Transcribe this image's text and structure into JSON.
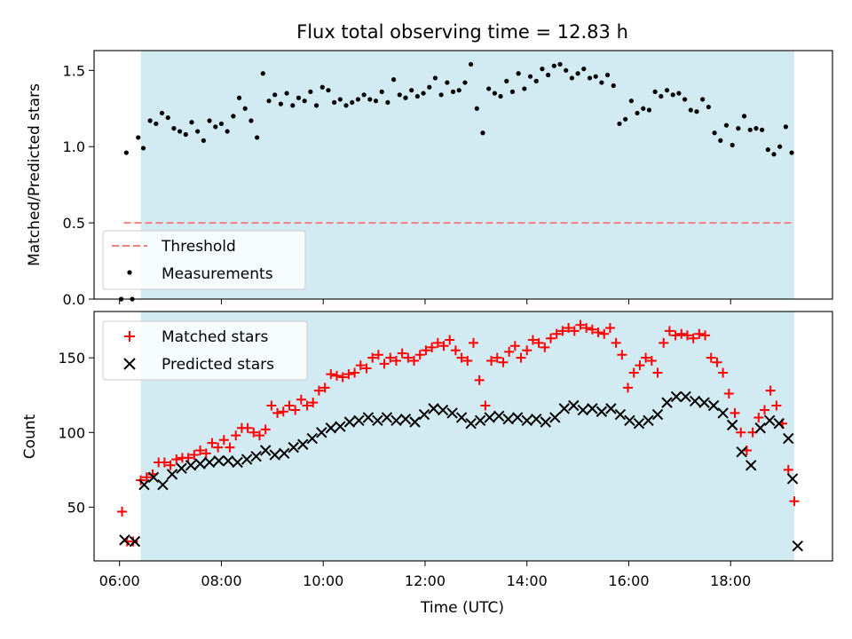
{
  "chart_data": [
    {
      "type": "scatter",
      "title": "Flux total observing time = 12.83 h",
      "xlabel": "",
      "ylabel": "Matched/Predicted stars",
      "xlim": [
        "05:30",
        "20:00"
      ],
      "ylim": [
        0,
        1.63
      ],
      "yticks": [
        "0.0",
        "0.5",
        "1.0",
        "1.5"
      ],
      "shaded_interval": [
        "06:25",
        "19:15"
      ],
      "legend": {
        "position": "lower-left",
        "entries": [
          "Threshold",
          "Measurements"
        ]
      },
      "threshold": {
        "name": "Threshold",
        "value": 0.5,
        "x_range": [
          "06:05",
          "19:15"
        ],
        "color": "#f08080"
      },
      "series": [
        {
          "name": "Measurements",
          "marker": "dot",
          "color": "#000000",
          "x": [
            "06:02",
            "06:08",
            "06:15",
            "06:22",
            "06:28",
            "06:36",
            "06:43",
            "06:50",
            "06:57",
            "07:04",
            "07:11",
            "07:18",
            "07:25",
            "07:32",
            "07:39",
            "07:46",
            "07:53",
            "08:00",
            "08:07",
            "08:14",
            "08:21",
            "08:28",
            "08:35",
            "08:42",
            "08:49",
            "08:56",
            "09:03",
            "09:10",
            "09:17",
            "09:24",
            "09:31",
            "09:38",
            "09:45",
            "09:52",
            "09:59",
            "10:06",
            "10:13",
            "10:20",
            "10:27",
            "10:34",
            "10:41",
            "10:48",
            "10:55",
            "11:02",
            "11:09",
            "11:16",
            "11:23",
            "11:30",
            "11:37",
            "11:44",
            "11:51",
            "11:58",
            "12:05",
            "12:12",
            "12:19",
            "12:26",
            "12:33",
            "12:40",
            "12:47",
            "12:54",
            "13:01",
            "13:08",
            "13:15",
            "13:22",
            "13:29",
            "13:36",
            "13:43",
            "13:50",
            "13:57",
            "14:04",
            "14:11",
            "14:18",
            "14:25",
            "14:32",
            "14:39",
            "14:46",
            "14:53",
            "15:00",
            "15:07",
            "15:14",
            "15:21",
            "15:28",
            "15:35",
            "15:42",
            "15:49",
            "15:56",
            "16:03",
            "16:10",
            "16:17",
            "16:24",
            "16:31",
            "16:38",
            "16:45",
            "16:52",
            "16:59",
            "17:06",
            "17:13",
            "17:20",
            "17:27",
            "17:34",
            "17:41",
            "17:48",
            "17:55",
            "18:02",
            "18:09",
            "18:16",
            "18:23",
            "18:30",
            "18:37",
            "18:44",
            "18:51",
            "18:58",
            "19:05",
            "19:12"
          ],
          "y": [
            0,
            0.96,
            0,
            1.06,
            0.99,
            1.17,
            1.15,
            1.22,
            1.19,
            1.12,
            1.1,
            1.08,
            1.16,
            1.1,
            1.04,
            1.17,
            1.13,
            1.15,
            1.1,
            1.2,
            1.32,
            1.25,
            1.17,
            1.06,
            1.48,
            1.3,
            1.34,
            1.28,
            1.35,
            1.27,
            1.32,
            1.3,
            1.36,
            1.27,
            1.39,
            1.37,
            1.29,
            1.31,
            1.27,
            1.29,
            1.31,
            1.34,
            1.31,
            1.3,
            1.36,
            1.29,
            1.44,
            1.34,
            1.32,
            1.37,
            1.33,
            1.35,
            1.39,
            1.45,
            1.34,
            1.42,
            1.36,
            1.37,
            1.42,
            1.54,
            1.25,
            1.09,
            1.38,
            1.35,
            1.33,
            1.43,
            1.36,
            1.48,
            1.38,
            1.46,
            1.43,
            1.51,
            1.47,
            1.53,
            1.54,
            1.5,
            1.45,
            1.48,
            1.51,
            1.45,
            1.46,
            1.42,
            1.47,
            1.4,
            1.15,
            1.18,
            1.3,
            1.22,
            1.25,
            1.24,
            1.36,
            1.33,
            1.37,
            1.34,
            1.35,
            1.31,
            1.24,
            1.23,
            1.31,
            1.26,
            1.09,
            1.04,
            1.14,
            1.01,
            1.12,
            1.2,
            1.11,
            1.12,
            1.11,
            0.98,
            0.95,
            1.0,
            1.13,
            0.96
          ]
        }
      ]
    },
    {
      "type": "scatter",
      "title": "",
      "xlabel": "Time (UTC)",
      "ylabel": "Count",
      "xlim": [
        "05:30",
        "20:00"
      ],
      "ylim": [
        14,
        181
      ],
      "yticks": [
        "50",
        "100",
        "150"
      ],
      "xticks": [
        "06:00",
        "08:00",
        "10:00",
        "12:00",
        "14:00",
        "16:00",
        "18:00"
      ],
      "shaded_interval": [
        "06:25",
        "19:15"
      ],
      "legend": {
        "position": "top-left",
        "entries": [
          "Matched stars",
          "Predicted stars"
        ]
      },
      "series": [
        {
          "name": "Matched stars",
          "marker": "plus",
          "color": "#ff0000",
          "x": [
            "06:03",
            "06:09",
            "06:16",
            "06:25",
            "06:32",
            "06:39",
            "06:46",
            "06:53",
            "07:00",
            "07:07",
            "07:14",
            "07:21",
            "07:28",
            "07:35",
            "07:42",
            "07:49",
            "07:56",
            "08:03",
            "08:10",
            "08:17",
            "08:24",
            "08:31",
            "08:38",
            "08:45",
            "08:52",
            "08:59",
            "09:06",
            "09:13",
            "09:20",
            "09:27",
            "09:34",
            "09:41",
            "09:48",
            "09:55",
            "10:02",
            "10:09",
            "10:16",
            "10:23",
            "10:30",
            "10:37",
            "10:44",
            "10:51",
            "10:58",
            "11:05",
            "11:12",
            "11:19",
            "11:26",
            "11:33",
            "11:40",
            "11:47",
            "11:54",
            "12:01",
            "12:08",
            "12:15",
            "12:22",
            "12:29",
            "12:36",
            "12:43",
            "12:50",
            "12:57",
            "13:04",
            "13:11",
            "13:18",
            "13:25",
            "13:32",
            "13:39",
            "13:46",
            "13:53",
            "14:00",
            "14:07",
            "14:14",
            "14:21",
            "14:28",
            "14:35",
            "14:42",
            "14:49",
            "14:56",
            "15:03",
            "15:10",
            "15:17",
            "15:24",
            "15:31",
            "15:38",
            "15:45",
            "15:52",
            "15:59",
            "16:06",
            "16:13",
            "16:20",
            "16:27",
            "16:34",
            "16:41",
            "16:48",
            "16:55",
            "17:02",
            "17:09",
            "17:16",
            "17:23",
            "17:30",
            "17:37",
            "17:44",
            "17:51",
            "17:58",
            "18:05",
            "18:12",
            "18:19",
            "18:26",
            "18:33",
            "18:40",
            "18:47",
            "18:54",
            "19:01",
            "19:08",
            "19:15"
          ],
          "y": [
            47,
            27,
            27,
            68,
            70,
            72,
            80,
            80,
            78,
            82,
            83,
            83,
            85,
            88,
            86,
            93,
            90,
            95,
            90,
            98,
            103,
            103,
            100,
            98,
            102,
            118,
            113,
            114,
            118,
            115,
            122,
            118,
            120,
            128,
            130,
            139,
            138,
            137,
            139,
            140,
            145,
            143,
            150,
            152,
            146,
            150,
            148,
            153,
            150,
            148,
            152,
            155,
            157,
            160,
            158,
            162,
            155,
            150,
            148,
            160,
            135,
            118,
            148,
            150,
            147,
            154,
            158,
            150,
            155,
            162,
            160,
            157,
            163,
            166,
            168,
            170,
            168,
            172,
            170,
            169,
            167,
            166,
            170,
            160,
            152,
            130,
            140,
            145,
            150,
            148,
            140,
            160,
            168,
            165,
            166,
            165,
            163,
            166,
            165,
            150,
            147,
            140,
            126,
            113,
            100,
            88,
            100,
            110,
            115,
            128,
            118,
            106,
            75,
            54
          ]
        },
        {
          "name": "Predicted stars",
          "marker": "x",
          "color": "#000000",
          "x": [
            "06:06",
            "06:18",
            "06:29",
            "06:40",
            "06:51",
            "07:02",
            "07:13",
            "07:24",
            "07:35",
            "07:46",
            "07:57",
            "08:08",
            "08:19",
            "08:30",
            "08:41",
            "08:52",
            "09:03",
            "09:14",
            "09:25",
            "09:36",
            "09:47",
            "09:58",
            "10:09",
            "10:20",
            "10:31",
            "10:42",
            "10:53",
            "11:04",
            "11:15",
            "11:26",
            "11:37",
            "11:48",
            "11:59",
            "12:10",
            "12:21",
            "12:32",
            "12:43",
            "12:54",
            "13:05",
            "13:16",
            "13:27",
            "13:38",
            "13:49",
            "14:00",
            "14:11",
            "14:22",
            "14:33",
            "14:44",
            "14:55",
            "15:06",
            "15:17",
            "15:28",
            "15:39",
            "15:50",
            "16:01",
            "16:12",
            "16:23",
            "16:34",
            "16:45",
            "16:56",
            "17:07",
            "17:18",
            "17:29",
            "17:40",
            "17:51",
            "18:02",
            "18:13",
            "18:24",
            "18:35",
            "18:46",
            "18:57",
            "19:08",
            "19:13",
            "19:19"
          ],
          "y": [
            28,
            27,
            65,
            70,
            65,
            72,
            76,
            78,
            79,
            80,
            81,
            81,
            80,
            82,
            84,
            88,
            85,
            86,
            90,
            92,
            96,
            100,
            103,
            104,
            107,
            108,
            110,
            108,
            110,
            108,
            109,
            107,
            112,
            116,
            115,
            113,
            110,
            106,
            108,
            110,
            111,
            109,
            110,
            108,
            109,
            107,
            110,
            116,
            118,
            115,
            116,
            114,
            116,
            112,
            108,
            106,
            108,
            112,
            120,
            124,
            124,
            121,
            120,
            118,
            113,
            105,
            87,
            78,
            103,
            108,
            106,
            96,
            69,
            24
          ]
        }
      ]
    }
  ]
}
